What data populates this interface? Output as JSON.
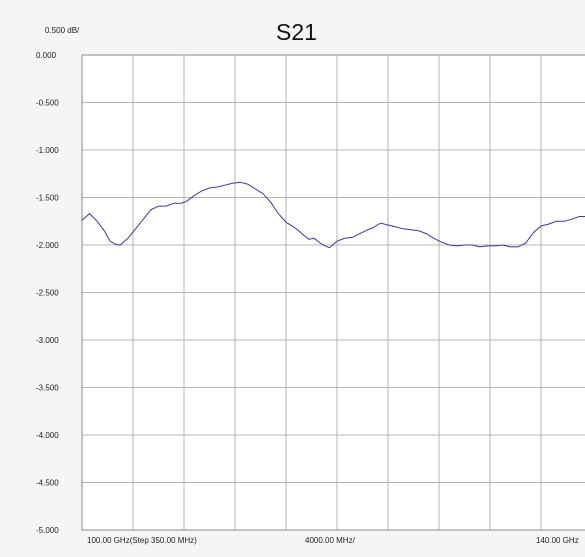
{
  "chart_data": {
    "type": "line",
    "title": "S21",
    "scale_label": "0.500 dB/",
    "ylim": [
      -5.0,
      0.0
    ],
    "y_ticks": [
      "0.000",
      "-0.500",
      "-1.000",
      "-1.500",
      "-2.000",
      "-2.500",
      "-3.000",
      "-3.500",
      "-4.000",
      "-4.500",
      "-5.000"
    ],
    "x_labels": {
      "start": "100.00 GHz(Step 350.00 MHz)",
      "center": "4000.00 MHz/",
      "stop": "140.00 GHz"
    },
    "x_divisions": 10,
    "xlim": [
      100,
      140
    ],
    "grid": true,
    "line_color": "#3b3b9e",
    "grid_color": "#b4b4b4",
    "series": [
      {
        "x": [
          100.0,
          100.6,
          101.2,
          101.8,
          102.2,
          102.6,
          103.0,
          103.6,
          104.2,
          104.8,
          105.4,
          106.0,
          106.6,
          107.2,
          107.8,
          108.2,
          108.8,
          109.4,
          110.0,
          110.6,
          111.2,
          111.8,
          112.4,
          113.0,
          113.6,
          114.2,
          114.8,
          115.4,
          116.0,
          116.6,
          117.0,
          117.4,
          117.8,
          118.2,
          118.8,
          119.4,
          120.0,
          120.6,
          121.2,
          121.8,
          122.4,
          122.8,
          123.4,
          124.0,
          124.6,
          125.2,
          125.8,
          126.4,
          127.0,
          127.6,
          128.2,
          128.8,
          129.4,
          130.0,
          130.6,
          131.2,
          131.8,
          132.4,
          133.0,
          133.6,
          134.2,
          134.8,
          135.4,
          136.0,
          136.6,
          137.2,
          137.8,
          138.4,
          139.0,
          139.6,
          140.0
        ],
        "y": [
          -1.74,
          -1.67,
          -1.75,
          -1.86,
          -1.96,
          -1.99,
          -2.0,
          -1.93,
          -1.83,
          -1.73,
          -1.63,
          -1.59,
          -1.59,
          -1.56,
          -1.56,
          -1.54,
          -1.48,
          -1.43,
          -1.4,
          -1.39,
          -1.37,
          -1.35,
          -1.34,
          -1.36,
          -1.41,
          -1.46,
          -1.55,
          -1.67,
          -1.76,
          -1.81,
          -1.85,
          -1.9,
          -1.94,
          -1.93,
          -1.99,
          -2.03,
          -1.96,
          -1.93,
          -1.92,
          -1.88,
          -1.84,
          -1.82,
          -1.77,
          -1.79,
          -1.81,
          -1.83,
          -1.84,
          -1.85,
          -1.88,
          -1.93,
          -1.97,
          -2.0,
          -2.01,
          -2.0,
          -2.0,
          -2.02,
          -2.01,
          -2.01,
          -2.0,
          -2.02,
          -2.02,
          -1.98,
          -1.87,
          -1.8,
          -1.78,
          -1.75,
          -1.75,
          -1.73,
          -1.7,
          -1.7,
          -1.68
        ]
      }
    ]
  }
}
